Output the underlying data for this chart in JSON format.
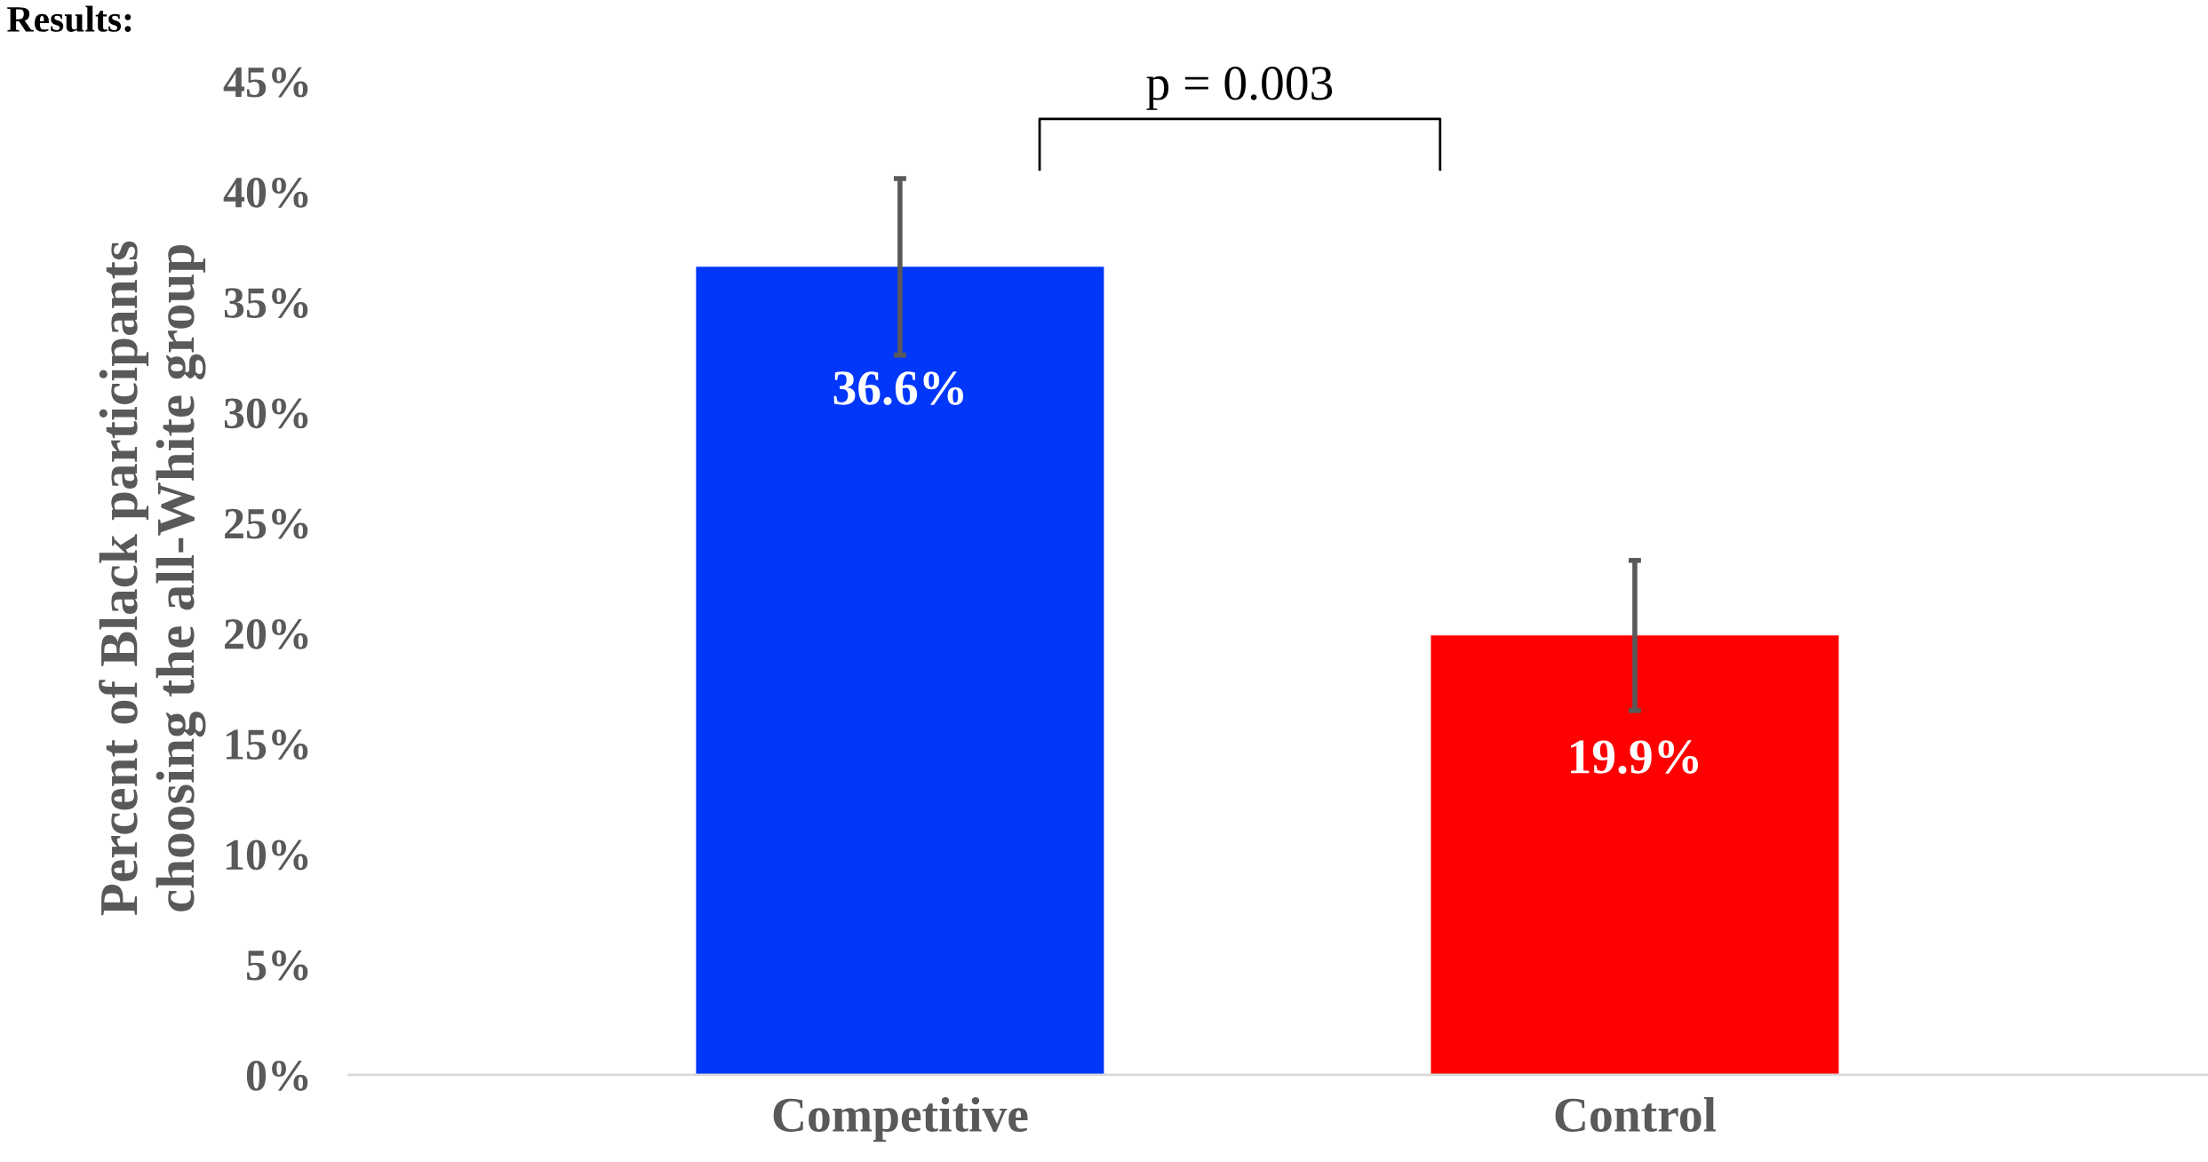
{
  "chart_data": {
    "type": "bar",
    "title": "Results:",
    "ylabel": "Percent of Black participants\nchoosing the all-White group",
    "categories": [
      "Competitive",
      "Control"
    ],
    "values": [
      36.6,
      19.9
    ],
    "colors": [
      "#0037fb",
      "#ff0000"
    ],
    "errors": [
      4.0,
      3.4
    ],
    "value_labels": [
      "36.6%",
      "19.9%"
    ],
    "ylim": [
      0,
      45
    ],
    "yticks": [
      {
        "value": 0,
        "label": "0%"
      },
      {
        "value": 5,
        "label": "5%"
      },
      {
        "value": 10,
        "label": "10%"
      },
      {
        "value": 15,
        "label": "15%"
      },
      {
        "value": 20,
        "label": "20%"
      },
      {
        "value": 25,
        "label": "25%"
      },
      {
        "value": 30,
        "label": "30%"
      },
      {
        "value": 35,
        "label": "35%"
      },
      {
        "value": 40,
        "label": "40%"
      },
      {
        "value": 45,
        "label": "45%"
      }
    ],
    "annotations": [
      "p = 0.003"
    ],
    "grid": false,
    "legend": false
  }
}
